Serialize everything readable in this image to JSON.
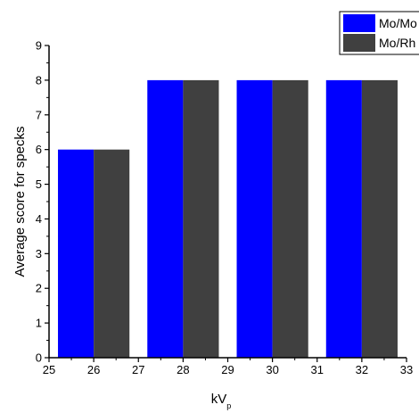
{
  "chart_data": {
    "type": "bar",
    "x": [
      26,
      28,
      30,
      32
    ],
    "series": [
      {
        "name": "Mo/Mo",
        "values": [
          6,
          8,
          8,
          8
        ],
        "color": "#0000ff"
      },
      {
        "name": "Mo/Rh",
        "values": [
          6,
          8,
          8,
          8
        ],
        "color": "#404040"
      }
    ],
    "xlabel": "kV",
    "xlabel_subscript": "p",
    "ylabel": "Average score for specks",
    "xlim": [
      25,
      33
    ],
    "ylim": [
      0,
      9
    ],
    "xticks": [
      25,
      26,
      27,
      28,
      29,
      30,
      31,
      32,
      33
    ],
    "yticks": [
      0,
      1,
      2,
      3,
      4,
      5,
      6,
      7,
      8,
      9
    ],
    "grid": false,
    "legend_position": "top-right"
  }
}
